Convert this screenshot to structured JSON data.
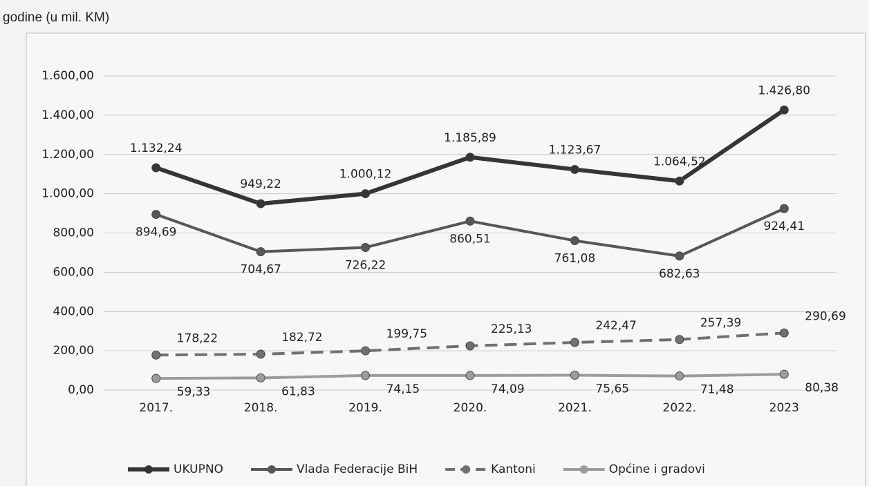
{
  "chart_data": {
    "type": "line",
    "title": "godine (u mil. KM)",
    "categories": [
      "2017.",
      "2018.",
      "2019.",
      "2020.",
      "2021.",
      "2022.",
      "2023"
    ],
    "ylim": [
      0,
      1600
    ],
    "yticks": [
      {
        "value": 0,
        "label": "0,00"
      },
      {
        "value": 200,
        "label": "200,00"
      },
      {
        "value": 400,
        "label": "400,00"
      },
      {
        "value": 600,
        "label": "600,00"
      },
      {
        "value": 800,
        "label": "800,00"
      },
      {
        "value": 1000,
        "label": "1.000,00"
      },
      {
        "value": 1200,
        "label": "1.200,00"
      },
      {
        "value": 1400,
        "label": "1.400,00"
      },
      {
        "value": 1600,
        "label": "1.600,00"
      }
    ],
    "grid": true,
    "legend": "bottom",
    "series": [
      {
        "name": "UKUPNO",
        "color": "#353535",
        "line_width": 6,
        "dashed": false,
        "values": [
          1132.24,
          949.22,
          1000.12,
          1185.89,
          1123.67,
          1064.52,
          1426.8
        ],
        "value_labels": [
          "1.132,24",
          "949,22",
          "1.000,12",
          "1.185,89",
          "1.123,67",
          "1.064,52",
          "1.426,80"
        ]
      },
      {
        "name": "Vlada Federacije BiH",
        "color": "#575757",
        "line_width": 4,
        "dashed": false,
        "values": [
          894.69,
          704.67,
          726.22,
          860.51,
          761.08,
          682.63,
          924.41
        ],
        "value_labels": [
          "894,69",
          "704,67",
          "726,22",
          "860,51",
          "761,08",
          "682,63",
          "924,41"
        ]
      },
      {
        "name": "Kantoni",
        "color": "#707070",
        "line_width": 4,
        "dashed": true,
        "values": [
          178.22,
          182.72,
          199.75,
          225.13,
          242.47,
          257.39,
          290.69
        ],
        "value_labels": [
          "178,22",
          "182,72",
          "199,75",
          "225,13",
          "242,47",
          "257,39",
          "290,69"
        ]
      },
      {
        "name": "Općine i gradovi",
        "color": "#9c9c9c",
        "line_width": 4,
        "dashed": false,
        "values": [
          59.33,
          61.83,
          74.15,
          74.09,
          75.65,
          71.48,
          80.38
        ],
        "value_labels": [
          "59,33",
          "61,83",
          "74,15",
          "74,09",
          "75,65",
          "71,48",
          "80,38"
        ]
      }
    ]
  }
}
